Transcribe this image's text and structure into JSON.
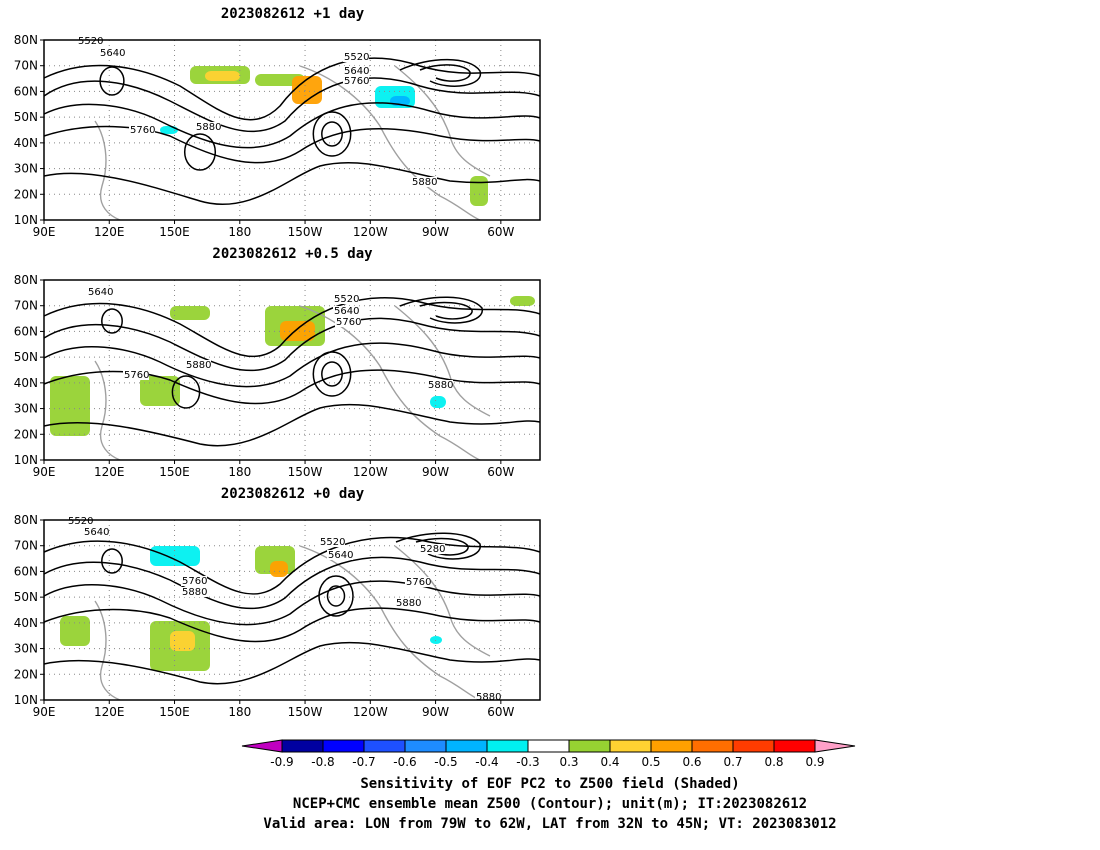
{
  "panels": [
    {
      "id": "p1",
      "title": "2023082612  +1 day",
      "contour_labels": [
        "5520",
        "5640",
        "5520",
        "5640",
        "5760",
        "5760",
        "5880",
        "5880"
      ]
    },
    {
      "id": "p2",
      "title": "2023082612  +0.5 day",
      "contour_labels": [
        "5640",
        "5520",
        "5640",
        "5760",
        "5760",
        "5880",
        "5880"
      ]
    },
    {
      "id": "p3",
      "title": "2023082612  +0 day",
      "contour_labels": [
        "5520",
        "5640",
        "5520",
        "5640",
        "5280",
        "5760",
        "5880",
        "5760",
        "5880",
        "5880"
      ]
    }
  ],
  "axes": {
    "lat_labels": [
      "80N",
      "70N",
      "60N",
      "50N",
      "40N",
      "30N",
      "20N",
      "10N"
    ],
    "lon_labels": [
      "90E",
      "120E",
      "150E",
      "180",
      "150W",
      "120W",
      "90W",
      "60W"
    ]
  },
  "colorbar": {
    "ticks": [
      "-0.9",
      "-0.8",
      "-0.7",
      "-0.6",
      "-0.5",
      "-0.4",
      "-0.3",
      "0.3",
      "0.4",
      "0.5",
      "0.6",
      "0.7",
      "0.8",
      "0.9"
    ],
    "colors": [
      "#c000c0",
      "#0000a0",
      "#0000ff",
      "#1e50ff",
      "#1e8cff",
      "#00b4ff",
      "#00f0f0",
      "#ffffff",
      "#96d232",
      "#ffd232",
      "#ffa000",
      "#ff6e00",
      "#ff3c00",
      "#ff0000",
      "#ffa0c8"
    ]
  },
  "captions": {
    "line1": "Sensitivity of EOF PC2 to Z500 field (Shaded)",
    "line2": "NCEP+CMC ensemble mean Z500 (Contour); unit(m); IT:2023082612",
    "line3": "Valid area: LON from 79W to 62W, LAT from 32N to 45N; VT: 2023083012"
  }
}
